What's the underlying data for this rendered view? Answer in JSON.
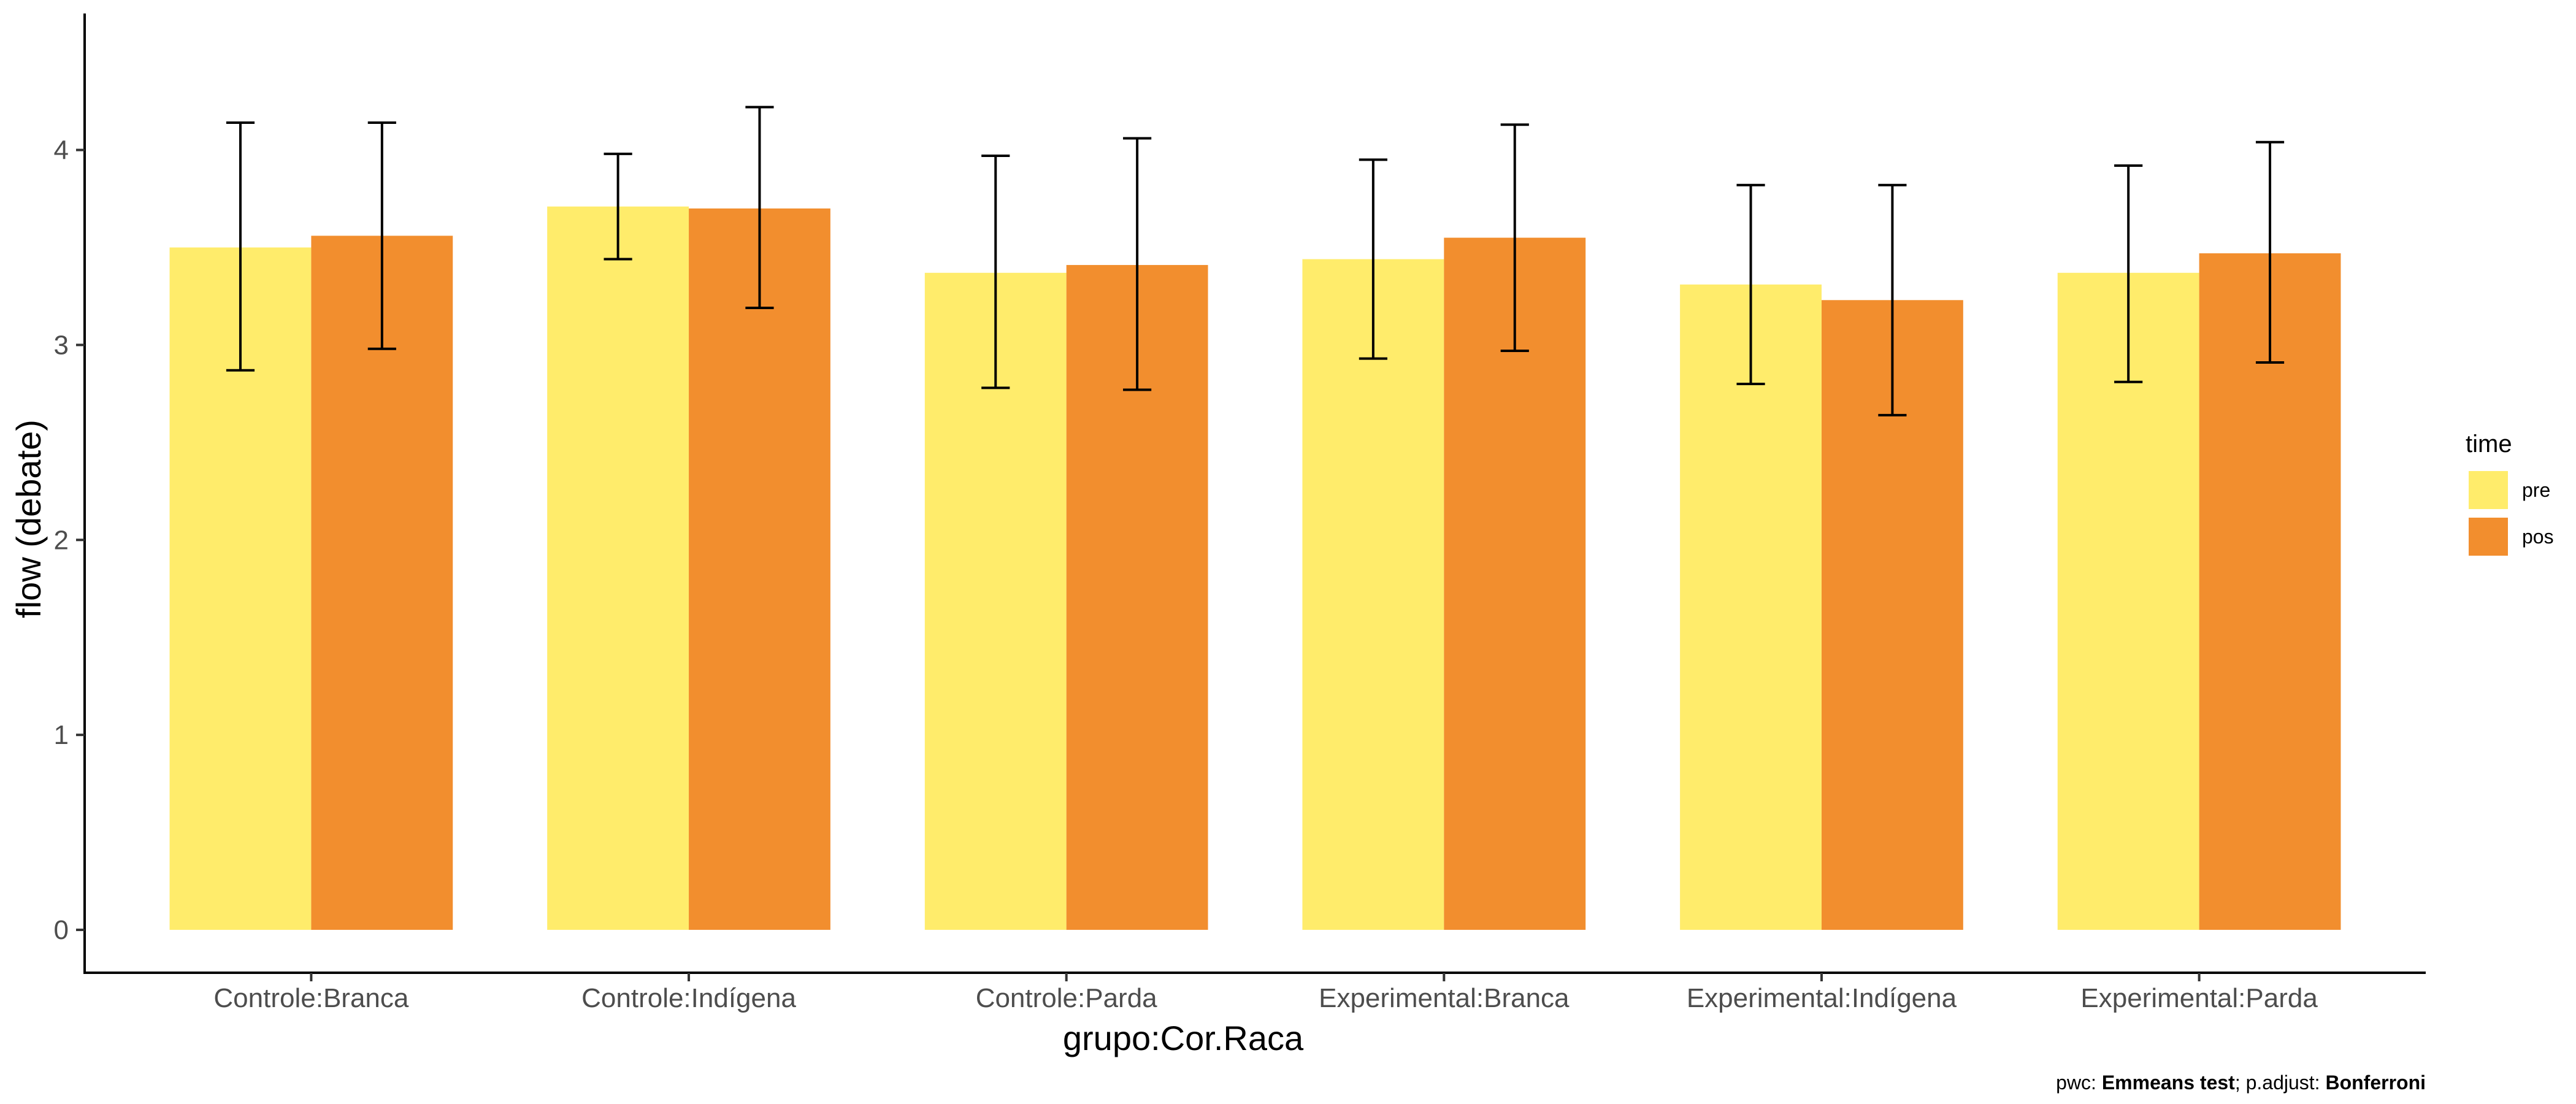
{
  "chart_data": {
    "type": "bar",
    "xlabel": "grupo:Cor.Raca",
    "ylabel": "flow (debate)",
    "ylim": [
      -0.22,
      4.7
    ],
    "yticks": [
      0,
      1,
      2,
      3,
      4
    ],
    "categories": [
      "Controle:Branca",
      "Controle:Indígena",
      "Controle:Parda",
      "Experimental:Branca",
      "Experimental:Indígena",
      "Experimental:Parda"
    ],
    "legend": {
      "title": "time",
      "position": "right"
    },
    "grid": false,
    "series": [
      {
        "name": "pre",
        "color": "#FFEC6B",
        "values": [
          3.5,
          3.71,
          3.37,
          3.44,
          3.31,
          3.37
        ],
        "error_low": [
          2.87,
          3.44,
          2.78,
          2.93,
          2.8,
          2.81
        ],
        "error_high": [
          4.14,
          3.98,
          3.97,
          3.95,
          3.82,
          3.92
        ]
      },
      {
        "name": "pos",
        "color": "#F28E2E",
        "values": [
          3.56,
          3.7,
          3.41,
          3.55,
          3.23,
          3.47
        ],
        "error_low": [
          2.98,
          3.19,
          2.77,
          2.97,
          2.64,
          2.91
        ],
        "error_high": [
          4.14,
          4.22,
          4.06,
          4.13,
          3.82,
          4.04
        ]
      }
    ]
  },
  "caption": {
    "prefix": "pwc: ",
    "test": "Emmeans test",
    "middle": "; p.adjust: ",
    "method": "Bonferroni"
  }
}
